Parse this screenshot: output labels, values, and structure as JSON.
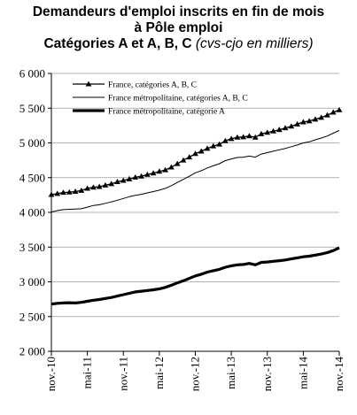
{
  "title": {
    "line1": "Demandeurs d'emploi inscrits en fin de mois",
    "line2": "à Pôle emploi",
    "line3_main": "Catégories A et A, B, C",
    "line3_note": "(cvs-cjo en milliers)"
  },
  "chart_data": {
    "type": "line",
    "title": "Demandeurs d'emploi inscrits en fin de mois à Pôle emploi — Catégories A et A, B, C (cvs-cjo en milliers)",
    "ylim": [
      2000,
      6000
    ],
    "y_ticks": [
      "2 000",
      "2 500",
      "3 000",
      "3 500",
      "4 000",
      "4 500",
      "5 000",
      "5 500",
      "6 000"
    ],
    "y_tick_values": [
      2000,
      2500,
      3000,
      3500,
      4000,
      4500,
      5000,
      5500,
      6000
    ],
    "x_ticks": [
      "nov.-10",
      "mai-11",
      "nov.-11",
      "mai-12",
      "nov.-12",
      "mai-13",
      "nov.-13",
      "mai-14",
      "nov.-14"
    ],
    "x_tick_index": [
      0,
      6,
      12,
      18,
      24,
      30,
      36,
      42,
      48
    ],
    "grid": "horizontal",
    "legend_position": "top-left",
    "months_count": 49,
    "series": [
      {
        "name": "France, catégories A, B, C",
        "style": "line-triangles",
        "color": "#000000",
        "values": [
          4255,
          4270,
          4285,
          4290,
          4300,
          4315,
          4345,
          4360,
          4370,
          4390,
          4410,
          4440,
          4460,
          4480,
          4505,
          4520,
          4545,
          4565,
          4590,
          4610,
          4650,
          4700,
          4750,
          4795,
          4845,
          4880,
          4920,
          4955,
          4980,
          5030,
          5060,
          5080,
          5085,
          5100,
          5080,
          5130,
          5150,
          5170,
          5190,
          5215,
          5240,
          5270,
          5300,
          5315,
          5340,
          5365,
          5400,
          5440,
          5475
        ]
      },
      {
        "name": "France métropolitaine, catégories A, B, C",
        "style": "thin-line",
        "color": "#000000",
        "values": [
          4005,
          4025,
          4040,
          4045,
          4048,
          4052,
          4075,
          4100,
          4110,
          4130,
          4150,
          4175,
          4200,
          4225,
          4245,
          4260,
          4280,
          4300,
          4320,
          4345,
          4385,
          4430,
          4475,
          4520,
          4570,
          4600,
          4640,
          4670,
          4700,
          4745,
          4770,
          4790,
          4795,
          4810,
          4795,
          4840,
          4860,
          4880,
          4900,
          4920,
          4945,
          4970,
          5000,
          5015,
          5045,
          5070,
          5100,
          5140,
          5180
        ]
      },
      {
        "name": "France métropolitaine, catégorie A",
        "style": "thick-line",
        "color": "#000000",
        "values": [
          2680,
          2690,
          2695,
          2700,
          2695,
          2705,
          2720,
          2735,
          2745,
          2760,
          2775,
          2795,
          2815,
          2835,
          2855,
          2865,
          2875,
          2885,
          2900,
          2920,
          2950,
          2985,
          3015,
          3050,
          3085,
          3110,
          3140,
          3160,
          3180,
          3210,
          3230,
          3245,
          3250,
          3265,
          3245,
          3280,
          3285,
          3295,
          3305,
          3315,
          3330,
          3345,
          3360,
          3370,
          3385,
          3400,
          3420,
          3450,
          3490
        ]
      }
    ]
  }
}
